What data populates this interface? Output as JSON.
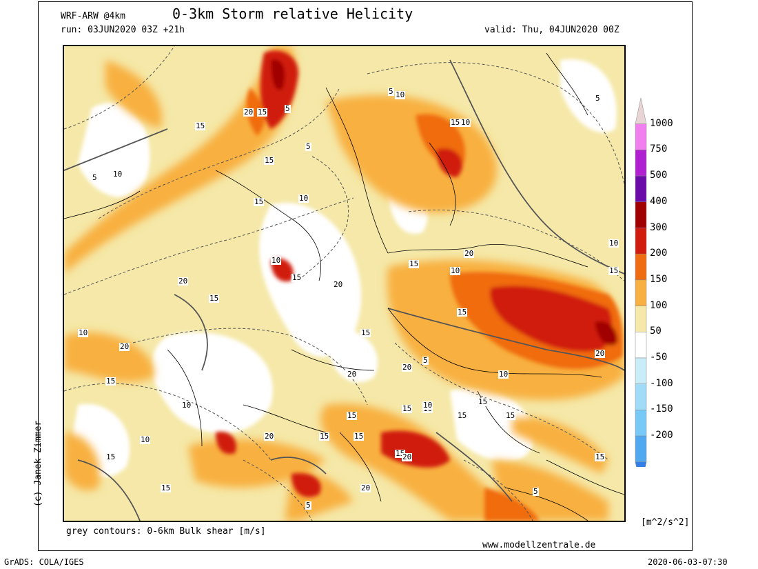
{
  "header": {
    "model": "WRF-ARW @4km",
    "title": "0-3km Storm relative Helicity",
    "run": "run: 03JUN2020 03Z +21h",
    "valid": "valid: Thu, 04JUN2020 00Z"
  },
  "footer": {
    "shear_note": "grey contours: 0-6km Bulk shear [m/s]",
    "website": "www.modellzentrale.de",
    "grads": "GrADS: COLA/IGES",
    "timestamp": "2020-06-03-07:30",
    "author": "(c) Janek Zimmer"
  },
  "legend": {
    "units": "[m^2/s^2]",
    "labels": [
      "1000",
      "750",
      "500",
      "400",
      "300",
      "200",
      "150",
      "100",
      "50",
      "-50",
      "-100",
      "-150",
      "-200"
    ],
    "colors": [
      "#e8d4d4",
      "#f080f0",
      "#b020d0",
      "#6a0aa8",
      "#a00000",
      "#d01c0c",
      "#f06c10",
      "#f8b040",
      "#f5e8a8",
      "#ffffff",
      "#c8ecf8",
      "#a0dcf8",
      "#78c8f8",
      "#50a8f0",
      "#3080e8"
    ]
  },
  "map": {
    "contour_labels": [
      "5",
      "10",
      "15",
      "20",
      "15",
      "15",
      "15",
      "5",
      "10",
      "5",
      "10",
      "15",
      "20",
      "15",
      "20",
      "15",
      "10",
      "15",
      "20",
      "5",
      "10",
      "15",
      "10",
      "5",
      "10",
      "15",
      "20",
      "15",
      "20",
      "5",
      "10",
      "15",
      "5",
      "10",
      "15",
      "20",
      "10",
      "15",
      "20",
      "15",
      "10",
      "15",
      "20",
      "15",
      "15",
      "15",
      "10",
      "15",
      "10",
      "15",
      "20",
      "5",
      "15",
      "20",
      "10",
      "15"
    ]
  }
}
